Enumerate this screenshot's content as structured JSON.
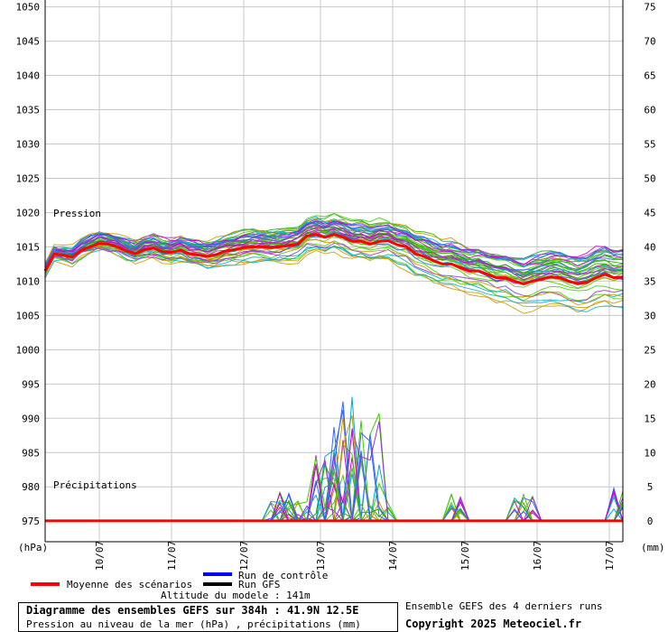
{
  "chart_data": {
    "type": "line",
    "title": "Diagramme des ensembles GEFS sur 384h : 41.9N 12.5E",
    "subtitle": "Pression au niveau de la mer (hPa) , précipitations (mm)",
    "altitude": "Altitude du modele : 141m",
    "source_note": "Ensemble GEFS des 4 derniers runs",
    "copyright": "Copyright 2025 Meteociel.fr",
    "left_axis": {
      "label": "(hPa)",
      "ticks": [
        1050,
        1045,
        1040,
        1035,
        1030,
        1025,
        1020,
        1015,
        1010,
        1005,
        1000,
        995,
        990,
        985,
        980,
        975
      ],
      "range": [
        972,
        1051
      ]
    },
    "right_axis": {
      "label": "(mm)",
      "ticks": [
        75,
        70,
        65,
        60,
        55,
        50,
        45,
        40,
        35,
        30,
        25,
        20,
        15,
        10,
        5,
        0
      ]
    },
    "x_axis": {
      "unit": "hours",
      "range": [
        0,
        384
      ],
      "date_labels": [
        "10/07",
        "11/07",
        "12/07",
        "13/07",
        "14/07",
        "15/07",
        "16/07",
        "17/07"
      ],
      "date_hours": [
        36,
        84,
        132,
        183,
        231,
        279,
        327,
        375
      ]
    },
    "grid": true,
    "annotations": {
      "pressure": "Pression",
      "precip": "Précipitations"
    },
    "legend": [
      {
        "label": "Moyenne des scénarios",
        "color": "#ff0000"
      },
      {
        "label": "Run de contrôle",
        "color": "#0000ff"
      },
      {
        "label": "Run GFS",
        "color": "#000000"
      }
    ],
    "ensemble_colors": [
      "#22aa00",
      "#44cc00",
      "#66bb22",
      "#cc00cc",
      "#9933cc",
      "#cc9900",
      "#00aacc",
      "#3366ff"
    ],
    "mean_pressure": {
      "x": [
        0,
        6,
        12,
        18,
        24,
        30,
        36,
        42,
        48,
        54,
        60,
        66,
        72,
        78,
        84,
        90,
        96,
        102,
        108,
        114,
        120,
        126,
        132,
        138,
        144,
        150,
        156,
        162,
        168,
        174,
        180,
        186,
        192,
        198,
        204,
        210,
        216,
        222,
        228,
        234,
        240,
        246,
        252,
        258,
        264,
        270,
        276,
        282,
        288,
        294,
        300,
        306,
        312,
        318,
        324,
        330,
        336,
        342,
        348,
        354,
        360,
        366,
        372,
        378,
        384
      ],
      "y": [
        1011.5,
        1014.0,
        1013.8,
        1013.5,
        1014.5,
        1015.0,
        1015.5,
        1015.4,
        1015.0,
        1014.4,
        1014.0,
        1014.6,
        1014.8,
        1014.3,
        1014.2,
        1014.5,
        1014.0,
        1013.8,
        1013.6,
        1013.9,
        1014.4,
        1014.6,
        1014.9,
        1015.0,
        1015.0,
        1014.9,
        1015.0,
        1015.2,
        1015.4,
        1016.6,
        1016.8,
        1016.4,
        1016.8,
        1016.4,
        1015.8,
        1015.8,
        1015.4,
        1015.8,
        1015.9,
        1015.3,
        1015.0,
        1014.0,
        1013.6,
        1013.0,
        1012.5,
        1012.5,
        1012.0,
        1011.5,
        1011.5,
        1011.0,
        1010.5,
        1010.5,
        1010.0,
        1009.6,
        1010.0,
        1010.3,
        1010.6,
        1010.5,
        1010.0,
        1009.6,
        1009.8,
        1010.5,
        1011.0,
        1010.5,
        1010.6
      ]
    },
    "precip_peaks_mm": [
      {
        "hour": 186,
        "value": 11.0
      },
      {
        "hour": 198,
        "value": 14.0
      },
      {
        "hour": 201,
        "value": 18.5
      },
      {
        "hour": 216,
        "value": 16.0
      },
      {
        "hour": 159,
        "value": 4.5
      },
      {
        "hour": 273,
        "value": 4.0
      },
      {
        "hour": 318,
        "value": 4.0
      },
      {
        "hour": 384,
        "value": 5.0
      }
    ]
  }
}
